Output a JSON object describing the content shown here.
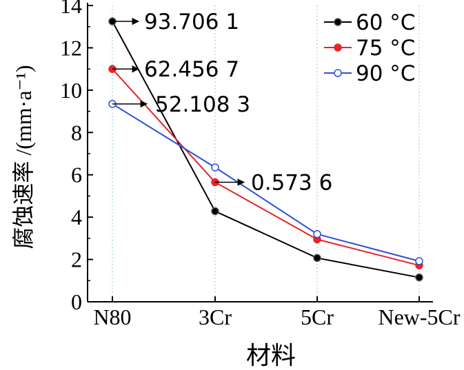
{
  "chart_data": {
    "type": "line",
    "categories": [
      "N80",
      "3Cr",
      "5Cr",
      "New-5Cr"
    ],
    "xlabel": "材料",
    "ylabel": "腐蚀速率 /(mm·a⁻¹)",
    "ylim": [
      0,
      14
    ],
    "yticks": [
      0,
      2,
      4,
      6,
      8,
      10,
      12,
      14
    ],
    "grid": "vertical dotted",
    "legend_position": "top-right",
    "series": [
      {
        "name": "60 °C",
        "values": [
          13.25,
          4.28,
          2.07,
          1.15
        ],
        "color": "#000000",
        "marker": "filled-black"
      },
      {
        "name": "75 °C",
        "values": [
          11.0,
          5.65,
          2.95,
          1.72
        ],
        "color": "#e8232a",
        "marker": "filled-red"
      },
      {
        "name": "90 °C",
        "values": [
          9.35,
          6.35,
          3.2,
          1.92
        ],
        "color": "#2a50d6",
        "marker": "open-blue"
      }
    ],
    "annotations": [
      {
        "text": "93.706 1",
        "series": 0,
        "category": 0
      },
      {
        "text": "62.456 7",
        "series": 1,
        "category": 0
      },
      {
        "text": "52.108 3",
        "series": 2,
        "category": 0
      },
      {
        "text": "0.573 6",
        "series": 1,
        "category": 1
      }
    ]
  }
}
